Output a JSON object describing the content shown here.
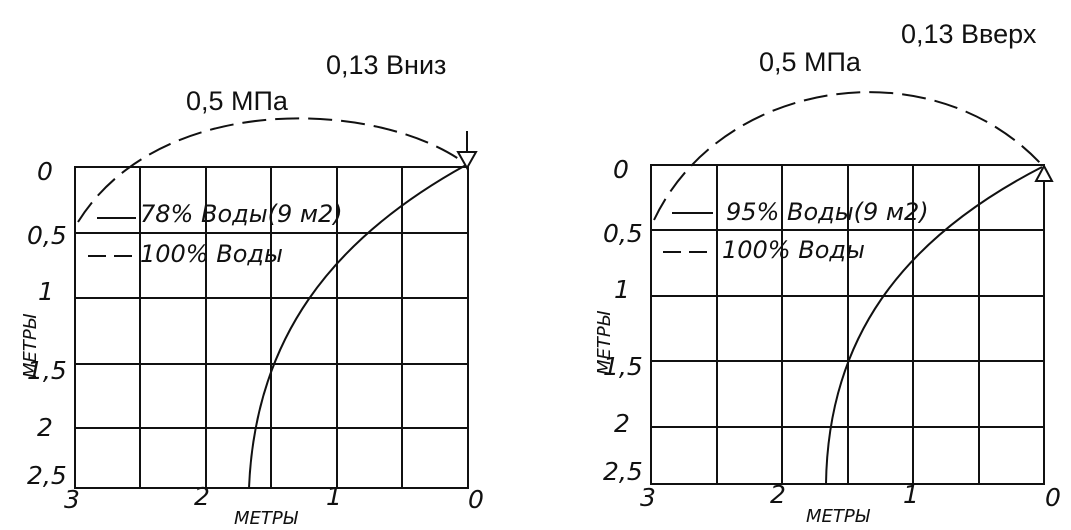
{
  "panels": [
    {
      "id": "left",
      "pressure_label": "0,5 МПа",
      "direction_label": "0,13 Вниз",
      "direction": "down",
      "legend": [
        {
          "style": "solid",
          "label": "78% Воды(9 м2)"
        },
        {
          "style": "dashed",
          "label": "100% Воды"
        }
      ],
      "y_ticks": [
        "0",
        "0,5",
        "1",
        "1,5",
        "2",
        "2,5"
      ],
      "x_ticks": [
        "3",
        "2",
        "1",
        "0"
      ],
      "y_axis_label": "МЕТРЫ",
      "x_axis_label": "МЕТРЫ"
    },
    {
      "id": "right",
      "pressure_label": "0,5 МПа",
      "direction_label": "0,13 Вверх",
      "direction": "up",
      "legend": [
        {
          "style": "solid",
          "label": "95% Воды(9 м2)"
        },
        {
          "style": "dashed",
          "label": "100% Воды"
        }
      ],
      "y_ticks": [
        "0",
        "0,5",
        "1",
        "1,5",
        "2",
        "2,5"
      ],
      "x_ticks": [
        "3",
        "2",
        "1",
        "0"
      ],
      "y_axis_label": "МЕТРЫ",
      "x_axis_label": "МЕТРЫ"
    }
  ]
}
